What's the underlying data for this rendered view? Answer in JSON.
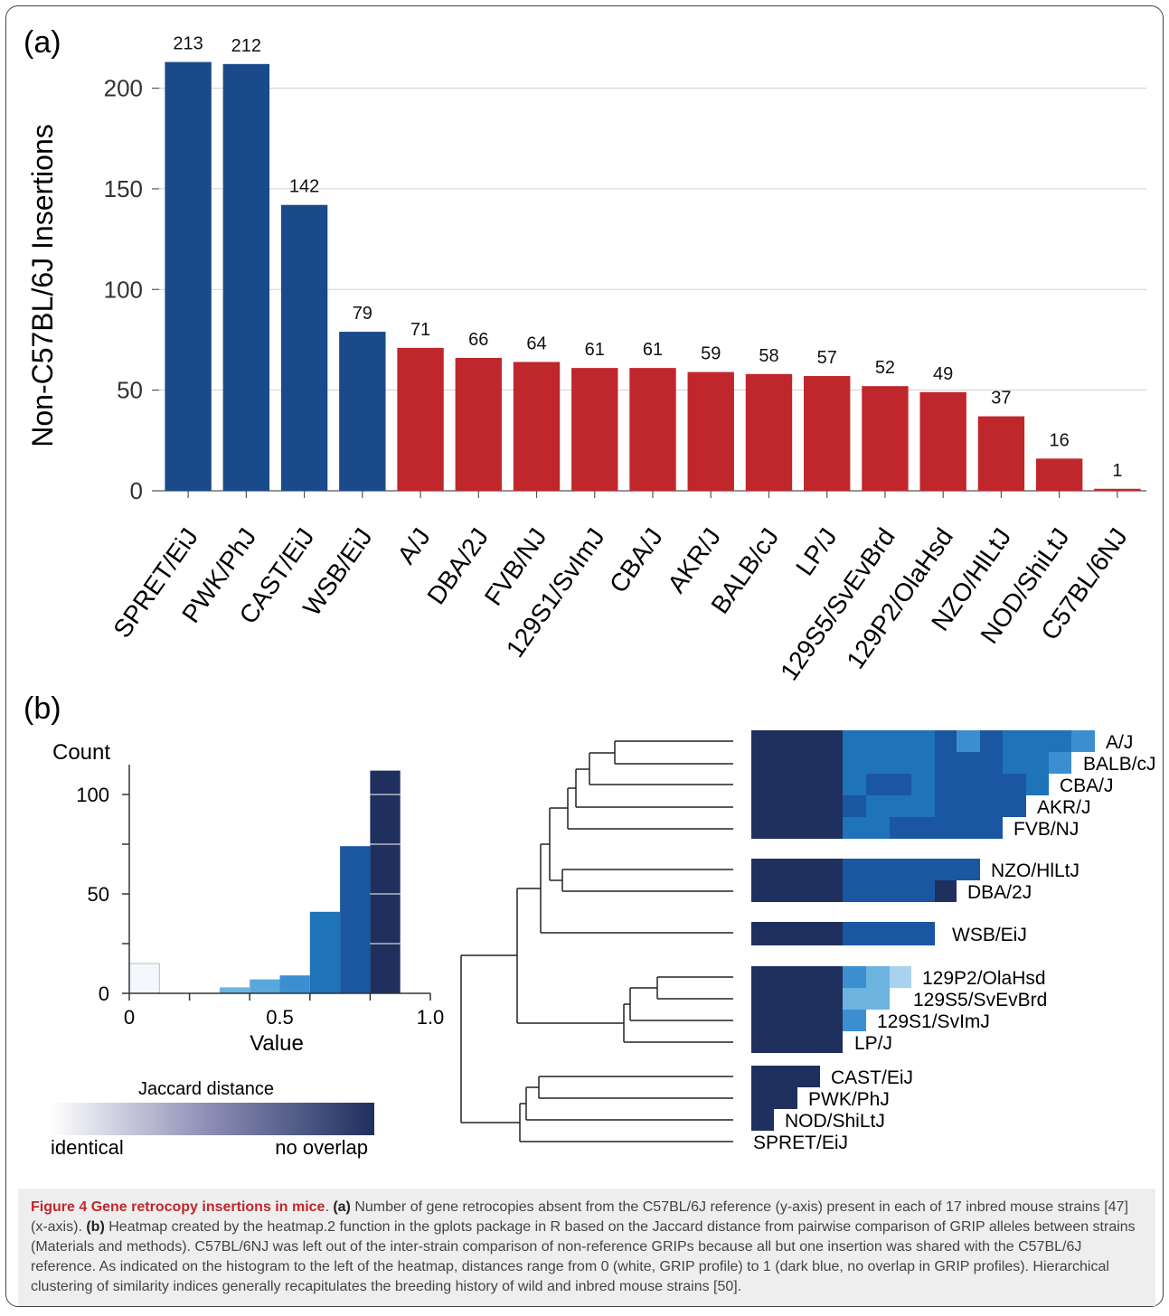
{
  "panel_a_label": "(a)",
  "panel_b_label": "(b)",
  "colors": {
    "wild_blue": "#1a4a8a",
    "inbred_red": "#c0272d",
    "heat_dark": "#1f2f5e",
    "heat_mid": "#1b56a3",
    "heat_light": "#1f73b8",
    "heat_lighter": "#3b8fd1",
    "heat_pale": "#6db3e0",
    "heat_palest": "#a9d2ef"
  },
  "chart_data": [
    {
      "type": "bar",
      "ylabel": "Non-C57BL/6J Insertions",
      "xlabel": "",
      "ylim": [
        0,
        220
      ],
      "yticks": [
        0,
        50,
        100,
        150,
        200
      ],
      "categories": [
        "SPRET/EiJ",
        "PWK/PhJ",
        "CAST/EiJ",
        "WSB/EiJ",
        "A/J",
        "DBA/2J",
        "FVB/NJ",
        "129S1/SvImJ",
        "CBA/J",
        "AKR/J",
        "BALB/cJ",
        "LP/J",
        "129S5/SvEvBrd",
        "129P2/OlaHsd",
        "NZO/HlLtJ",
        "NOD/ShiLtJ",
        "C57BL/6NJ"
      ],
      "values": [
        213,
        212,
        142,
        79,
        71,
        66,
        64,
        61,
        61,
        59,
        58,
        57,
        52,
        49,
        37,
        16,
        1
      ],
      "bar_colors": [
        "wild",
        "wild",
        "wild",
        "wild",
        "inbred",
        "inbred",
        "inbred",
        "inbred",
        "inbred",
        "inbred",
        "inbred",
        "inbred",
        "inbred",
        "inbred",
        "inbred",
        "inbred",
        "inbred"
      ]
    },
    {
      "type": "bar",
      "title": "Count",
      "xlabel": "Value",
      "xlim": [
        0,
        1
      ],
      "ylim": [
        0,
        115
      ],
      "xticks": [
        "0",
        "0.5",
        "1.0"
      ],
      "yticks": [
        "0",
        "50",
        "100"
      ],
      "bins": [
        {
          "from": 0.0,
          "to": 0.1,
          "count": 15
        },
        {
          "from": 0.1,
          "to": 0.2,
          "count": 0
        },
        {
          "from": 0.2,
          "to": 0.3,
          "count": 0
        },
        {
          "from": 0.3,
          "to": 0.4,
          "count": 3
        },
        {
          "from": 0.4,
          "to": 0.5,
          "count": 7
        },
        {
          "from": 0.5,
          "to": 0.6,
          "count": 9
        },
        {
          "from": 0.6,
          "to": 0.7,
          "count": 41
        },
        {
          "from": 0.7,
          "to": 0.8,
          "count": 74
        },
        {
          "from": 0.8,
          "to": 0.9,
          "count": 112
        }
      ]
    },
    {
      "type": "heatmap",
      "title": "Jaccard distance",
      "legend_low": "identical",
      "legend_high": "no overlap",
      "row_labels": [
        "A/J",
        "BALB/cJ",
        "CBA/J",
        "AKR/J",
        "FVB/NJ",
        "NZO/HlLtJ",
        "DBA/2J",
        "WSB/EiJ",
        "129P2/OlaHsd",
        "129S5/SvEvBrd",
        "129S1/SvImJ",
        "LP/J",
        "CAST/EiJ",
        "PWK/PhJ",
        "NOD/ShiLtJ",
        "SPRET/EiJ"
      ]
    }
  ],
  "caption": {
    "figure_label": "Figure 4",
    "title": "Gene retrocopy insertions in mice",
    "a_label": "(a)",
    "a_text": "Number of gene retrocopies absent from the C57BL/6J reference (y-axis) present in each of 17 inbred mouse strains [47] (x-axis).",
    "b_label": "(b)",
    "b_text": "Heatmap created by the heatmap.2 function in the gplots package in R based on the Jaccard distance from pairwise comparison of GRIP alleles between strains (Materials and methods). C57BL/6NJ was left out of the inter-strain comparison of non-reference GRIPs because all but one insertion was shared with the C57BL/6J reference. As indicated on the histogram to the left of the heatmap, distances range from 0 (white, GRIP profile) to 1 (dark blue, no overlap in GRIP profiles). Hierarchical clustering of similarity indices generally recapitulates the breeding history of wild and inbred mouse strains [50]."
  }
}
